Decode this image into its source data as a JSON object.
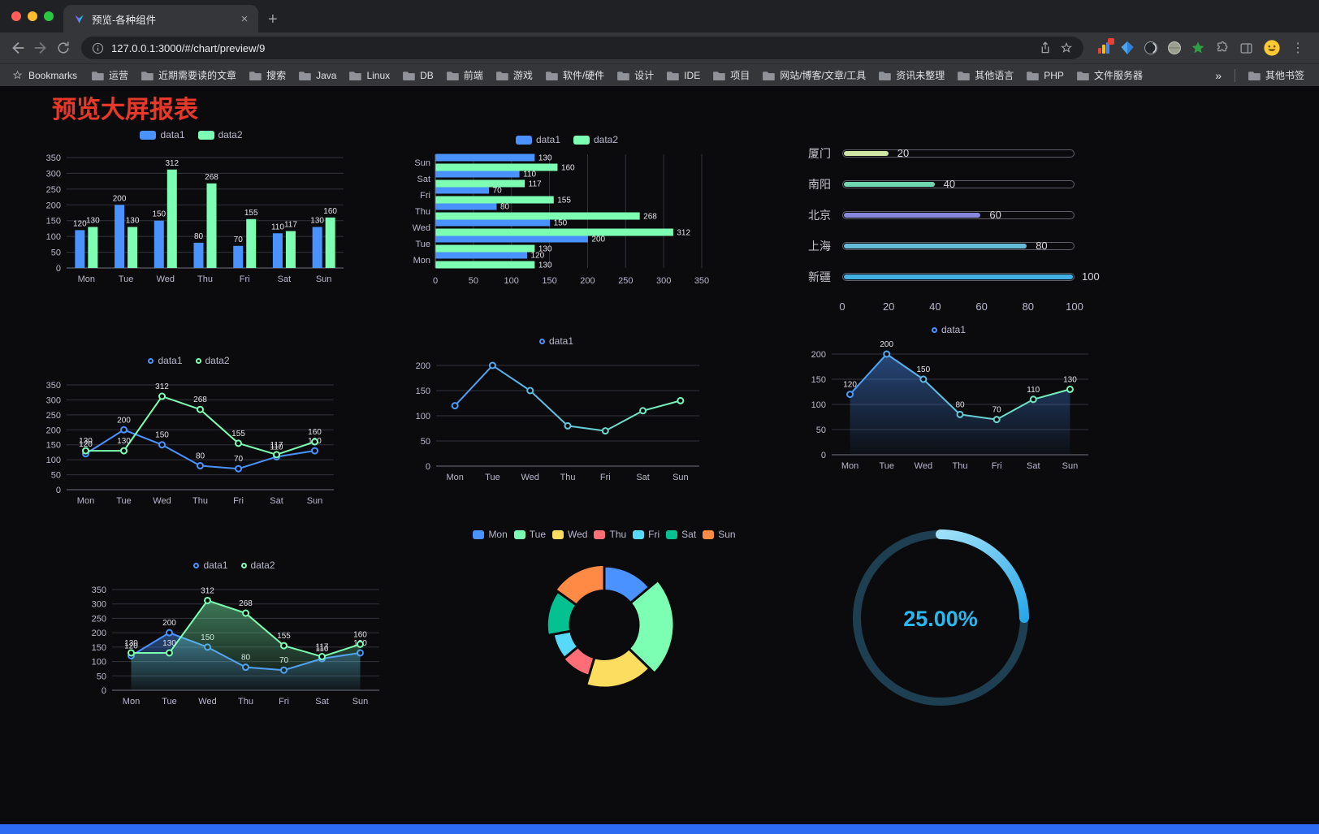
{
  "browser": {
    "tab_title": "预览-各种组件",
    "url": "127.0.0.1:3000/#/chart/preview/9",
    "bookmarks_label": "Bookmarks",
    "bookmark_items": [
      "运营",
      "近期需要读的文章",
      "搜索",
      "Java",
      "Linux",
      "DB",
      "前端",
      "游戏",
      "软件/硬件",
      "设计",
      "IDE",
      "项目",
      "网站/博客/文章/工具",
      "资讯未整理",
      "其他语言",
      "PHP",
      "文件服务器"
    ],
    "bookmarks_overflow": "»",
    "other_bookmarks_label": "其他书签",
    "icons": {
      "tab_close": "×",
      "new_tab": "+",
      "menu": "⋮"
    }
  },
  "page": {
    "title": "预览大屏报表"
  },
  "palette": {
    "data1": "#4992ff",
    "data2": "#7cffb2",
    "gauge": "#2bb7f0",
    "title_red": "#e8382a"
  },
  "chart_data": [
    {
      "id": "bar-vertical",
      "type": "bar",
      "orientation": "vertical",
      "categories": [
        "Mon",
        "Tue",
        "Wed",
        "Thu",
        "Fri",
        "Sat",
        "Sun"
      ],
      "series": [
        {
          "name": "data1",
          "color": "#4992ff",
          "values": [
            120,
            200,
            150,
            80,
            70,
            110,
            130
          ]
        },
        {
          "name": "data2",
          "color": "#7cffb2",
          "values": [
            130,
            130,
            312,
            268,
            155,
            117,
            160
          ]
        }
      ],
      "ylim": [
        0,
        350
      ],
      "ytick": 50,
      "legend_position": "top",
      "grid": true
    },
    {
      "id": "bar-horizontal",
      "type": "bar",
      "orientation": "horizontal",
      "categories": [
        "Sun",
        "Sat",
        "Fri",
        "Thu",
        "Wed",
        "Tue",
        "Mon"
      ],
      "series": [
        {
          "name": "data1",
          "color": "#4992ff",
          "values": [
            130,
            110,
            70,
            80,
            150,
            200,
            120
          ]
        },
        {
          "name": "data2",
          "color": "#7cffb2",
          "values": [
            160,
            117,
            155,
            268,
            312,
            130,
            130
          ]
        }
      ],
      "xlim": [
        0,
        350
      ],
      "xtick": 50,
      "legend_position": "top",
      "grid": true
    },
    {
      "id": "progress-bars",
      "type": "bar",
      "subtype": "progress",
      "items": [
        {
          "label": "厦门",
          "value": 20,
          "color": "#cfe6a3"
        },
        {
          "label": "南阳",
          "value": 40,
          "color": "#6fd8b2"
        },
        {
          "label": "北京",
          "value": 60,
          "color": "#8788dd"
        },
        {
          "label": "上海",
          "value": 80,
          "color": "#64bcd9"
        },
        {
          "label": "新疆",
          "value": 100,
          "color": "#41b0e2"
        }
      ],
      "xlim": [
        0,
        100
      ],
      "xticks": [
        0,
        20,
        40,
        60,
        80,
        100
      ]
    },
    {
      "id": "line-two-series",
      "type": "line",
      "categories": [
        "Mon",
        "Tue",
        "Wed",
        "Thu",
        "Fri",
        "Sat",
        "Sun"
      ],
      "series": [
        {
          "name": "data1",
          "color": "#4992ff",
          "values": [
            120,
            200,
            150,
            80,
            70,
            110,
            130
          ]
        },
        {
          "name": "data2",
          "color": "#7cffb2",
          "values": [
            130,
            130,
            312,
            268,
            155,
            117,
            160
          ]
        }
      ],
      "ylim": [
        0,
        350
      ],
      "ytick": 50,
      "point_labels": true,
      "legend_position": "top"
    },
    {
      "id": "line-single",
      "type": "line",
      "categories": [
        "Mon",
        "Tue",
        "Wed",
        "Thu",
        "Fri",
        "Sat",
        "Sun"
      ],
      "series": [
        {
          "name": "data1",
          "color": "#4992ff",
          "values": [
            120,
            200,
            150,
            80,
            70,
            110,
            130
          ]
        }
      ],
      "ylim": [
        0,
        200
      ],
      "ytick": 50,
      "point_labels": false,
      "line_gradient": [
        "#4992ff",
        "#7cffb2"
      ],
      "legend_position": "top"
    },
    {
      "id": "area-single",
      "type": "area",
      "categories": [
        "Mon",
        "Tue",
        "Wed",
        "Thu",
        "Fri",
        "Sat",
        "Sun"
      ],
      "series": [
        {
          "name": "data1",
          "color": "#4992ff",
          "area": true,
          "values": [
            120,
            200,
            150,
            80,
            70,
            110,
            130
          ]
        }
      ],
      "ylim": [
        0,
        200
      ],
      "ytick": 50,
      "point_labels": true,
      "line_gradient": [
        "#4992ff",
        "#7cffb2"
      ],
      "legend_position": "top"
    },
    {
      "id": "area-two-series",
      "type": "area",
      "categories": [
        "Mon",
        "Tue",
        "Wed",
        "Thu",
        "Fri",
        "Sat",
        "Sun"
      ],
      "series": [
        {
          "name": "data1",
          "color": "#4992ff",
          "area": true,
          "values": [
            120,
            200,
            150,
            80,
            70,
            110,
            130
          ]
        },
        {
          "name": "data2",
          "color": "#7cffb2",
          "area": true,
          "values": [
            130,
            130,
            312,
            268,
            155,
            117,
            160
          ]
        }
      ],
      "ylim": [
        0,
        350
      ],
      "ytick": 50,
      "point_labels": true,
      "legend_position": "top"
    },
    {
      "id": "donut",
      "type": "pie",
      "shape": "rose-donut",
      "categories": [
        "Mon",
        "Tue",
        "Wed",
        "Thu",
        "Fri",
        "Sat",
        "Sun"
      ],
      "values": [
        120,
        200,
        150,
        80,
        70,
        110,
        130
      ],
      "colors": [
        "#4992ff",
        "#7cffb2",
        "#fddd60",
        "#ff6e76",
        "#58d9f9",
        "#05c091",
        "#ff8a45"
      ],
      "legend_position": "top"
    },
    {
      "id": "gauge",
      "type": "gauge",
      "value": 25,
      "max": 100,
      "label": "25.00%",
      "color": "#2bb7f0",
      "track_color": "#1d3f51"
    }
  ]
}
